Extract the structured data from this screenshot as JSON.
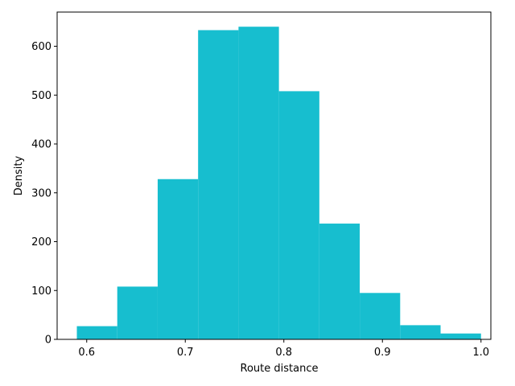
{
  "chart_data": {
    "type": "bar",
    "title": "",
    "xlabel": "Route distance",
    "ylabel": "Density",
    "xlim": [
      0.57,
      1.01
    ],
    "ylim": [
      0,
      670
    ],
    "bar_color": "#17becf",
    "bins": [
      {
        "x0": 0.59,
        "x1": 0.631,
        "value": 27
      },
      {
        "x0": 0.631,
        "x1": 0.672,
        "value": 108
      },
      {
        "x0": 0.672,
        "x1": 0.713,
        "value": 328
      },
      {
        "x0": 0.713,
        "x1": 0.754,
        "value": 633
      },
      {
        "x0": 0.754,
        "x1": 0.795,
        "value": 640
      },
      {
        "x0": 0.795,
        "x1": 0.836,
        "value": 508
      },
      {
        "x0": 0.836,
        "x1": 0.877,
        "value": 237
      },
      {
        "x0": 0.877,
        "x1": 0.918,
        "value": 95
      },
      {
        "x0": 0.918,
        "x1": 0.959,
        "value": 29
      },
      {
        "x0": 0.959,
        "x1": 1.0,
        "value": 12
      }
    ],
    "x_ticks": [
      {
        "value": 0.6,
        "label": "0.6"
      },
      {
        "value": 0.7,
        "label": "0.7"
      },
      {
        "value": 0.8,
        "label": "0.8"
      },
      {
        "value": 0.9,
        "label": "0.9"
      },
      {
        "value": 1.0,
        "label": "1.0"
      }
    ],
    "y_ticks": [
      {
        "value": 0,
        "label": "0"
      },
      {
        "value": 100,
        "label": "100"
      },
      {
        "value": 200,
        "label": "200"
      },
      {
        "value": 300,
        "label": "300"
      },
      {
        "value": 400,
        "label": "400"
      },
      {
        "value": 500,
        "label": "500"
      },
      {
        "value": 600,
        "label": "600"
      }
    ],
    "grid": false,
    "legend": "none"
  }
}
